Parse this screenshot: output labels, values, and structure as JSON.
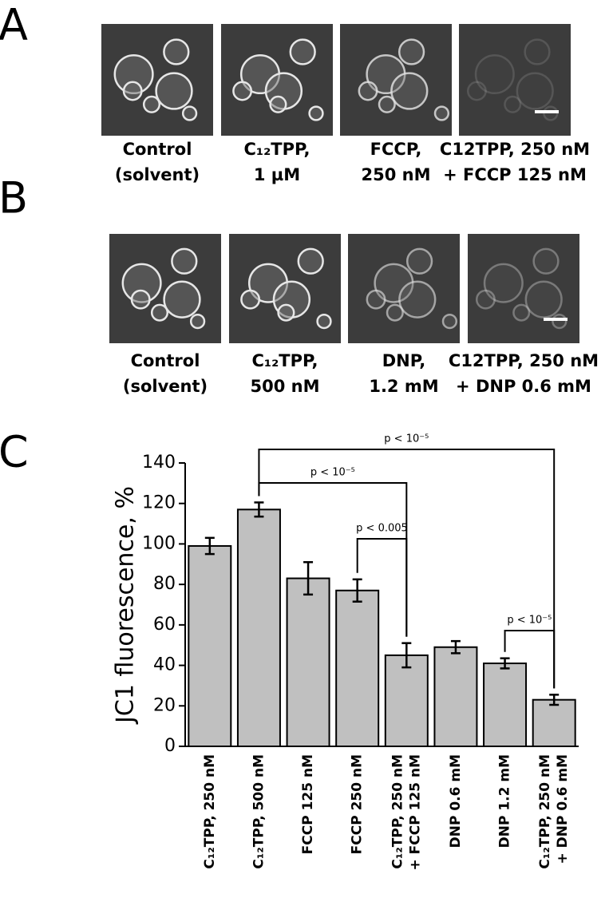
{
  "panels": [
    {
      "letter": "A",
      "captions": [
        [
          "Control",
          "(solvent)"
        ],
        [
          "C₁₂TPP,",
          "1 µM"
        ],
        [
          "FCCP,",
          "250 nM"
        ],
        [
          "C12TPP, 250 nM",
          "+ FCCP 125 nM"
        ]
      ]
    },
    {
      "letter": "B",
      "captions": [
        [
          "Control",
          "(solvent)"
        ],
        [
          "C₁₂TPP,",
          "500 nM"
        ],
        [
          "DNP,",
          "1.2 mM"
        ],
        [
          "C12TPP, 250 nM",
          "+ DNP 0.6 mM"
        ]
      ]
    },
    {
      "letter": "C"
    }
  ],
  "chart_data": {
    "type": "bar",
    "y_label": "JC1 fluorescence, %",
    "categories": [
      [
        "C₁₂TPP,  250 nM"
      ],
      [
        "C₁₂TPP,  500 nM"
      ],
      [
        "FCCP  125 nM"
      ],
      [
        "FCCP  250 nM"
      ],
      [
        "C₁₂TPP,  250 nM",
        "+ FCCP  125 nM"
      ],
      [
        "DNP 0.6 mM"
      ],
      [
        "DNP 1.2 mM"
      ],
      [
        "C₁₂TPP,  250 nM",
        "+ DNP  0.6 mM"
      ]
    ],
    "values": [
      99,
      117,
      83,
      77,
      45,
      49,
      41,
      23
    ],
    "errors": [
      4,
      3.5,
      8,
      5.5,
      6,
      3,
      2.5,
      2.5
    ],
    "color": "#c0c0c0",
    "ylim": [
      0,
      140
    ],
    "yticks": [
      0,
      20,
      40,
      60,
      80,
      100,
      120,
      140
    ],
    "annotations": [
      {
        "from": 1,
        "to": 7,
        "text": "p < 10⁻⁵"
      },
      {
        "from": 1,
        "to": 4,
        "text": "p < 10⁻⁵"
      },
      {
        "from": 3,
        "to": 4,
        "text": "p < 0.005"
      },
      {
        "from": 6,
        "to": 7,
        "text": "p < 10⁻⁵"
      }
    ]
  }
}
